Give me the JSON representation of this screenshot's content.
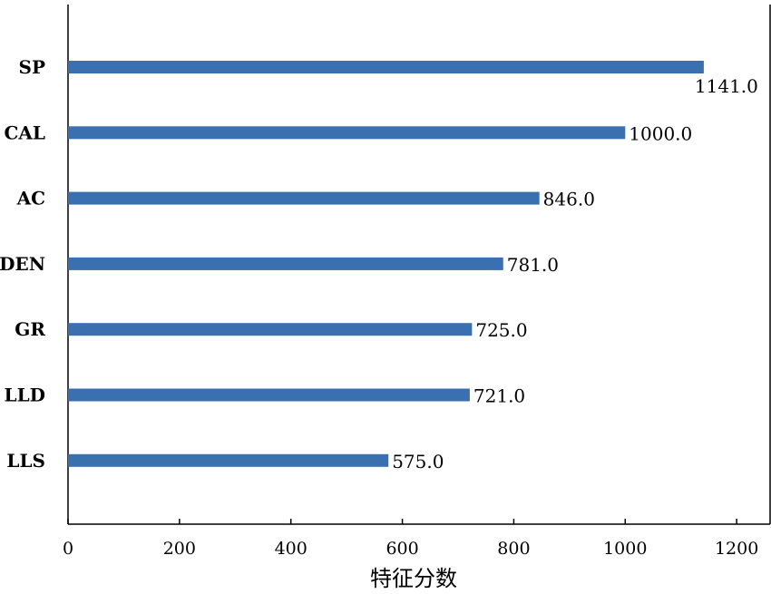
{
  "chart_data": {
    "type": "bar",
    "orientation": "horizontal",
    "categories": [
      "SP",
      "CAL",
      "AC",
      "DEN",
      "GR",
      "LLD",
      "LLS"
    ],
    "values": [
      1141.0,
      1000.0,
      846.0,
      781.0,
      725.0,
      721.0,
      575.0
    ],
    "value_labels": [
      "1141.0",
      "1000.0",
      "846.0",
      "781.0",
      "725.0",
      "721.0",
      "575.0"
    ],
    "xlabel": "特征分数",
    "ylabel": "",
    "xlim": [
      0,
      1260
    ],
    "xticks": [
      0,
      200,
      400,
      600,
      800,
      1000,
      1200
    ],
    "grid": false,
    "bar_color": "#3a6fb0"
  }
}
